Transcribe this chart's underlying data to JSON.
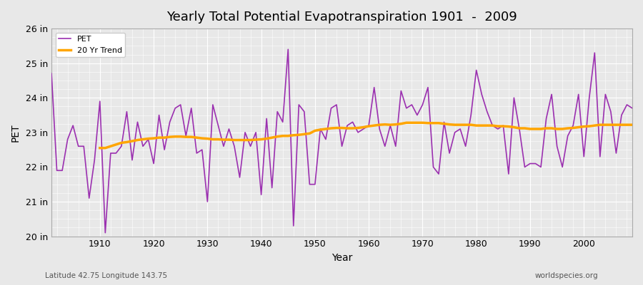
{
  "title": "Yearly Total Potential Evapotranspiration 1901  -  2009",
  "xlabel": "Year",
  "ylabel": "PET",
  "lat_lon_label": "Latitude 42.75 Longitude 143.75",
  "watermark": "worldspecies.org",
  "ylim": [
    20,
    26
  ],
  "xlim": [
    1901,
    2009
  ],
  "ytick_labels": [
    "20 in",
    "21 in",
    "22 in",
    "23 in",
    "24 in",
    "25 in",
    "26 in"
  ],
  "ytick_values": [
    20,
    21,
    22,
    23,
    24,
    25,
    26
  ],
  "xtick_values": [
    1910,
    1920,
    1930,
    1940,
    1950,
    1960,
    1970,
    1980,
    1990,
    2000
  ],
  "pet_color": "#9B30B0",
  "trend_color": "#FFA500",
  "bg_color": "#E8E8E8",
  "plot_bg_color": "#E8E8E8",
  "grid_color": "#FFFFFF",
  "years": [
    1901,
    1902,
    1903,
    1904,
    1905,
    1906,
    1907,
    1908,
    1909,
    1910,
    1911,
    1912,
    1913,
    1914,
    1915,
    1916,
    1917,
    1918,
    1919,
    1920,
    1921,
    1922,
    1923,
    1924,
    1925,
    1926,
    1927,
    1928,
    1929,
    1930,
    1931,
    1932,
    1933,
    1934,
    1935,
    1936,
    1937,
    1938,
    1939,
    1940,
    1941,
    1942,
    1943,
    1944,
    1945,
    1946,
    1947,
    1948,
    1949,
    1950,
    1951,
    1952,
    1953,
    1954,
    1955,
    1956,
    1957,
    1958,
    1959,
    1960,
    1961,
    1962,
    1963,
    1964,
    1965,
    1966,
    1967,
    1968,
    1969,
    1970,
    1971,
    1972,
    1973,
    1974,
    1975,
    1976,
    1977,
    1978,
    1979,
    1980,
    1981,
    1982,
    1983,
    1984,
    1985,
    1986,
    1987,
    1988,
    1989,
    1990,
    1991,
    1992,
    1993,
    1994,
    1995,
    1996,
    1997,
    1998,
    1999,
    2000,
    2001,
    2002,
    2003,
    2004,
    2005,
    2006,
    2007,
    2008,
    2009
  ],
  "pet_values": [
    24.7,
    21.9,
    21.9,
    22.8,
    23.2,
    22.6,
    22.6,
    21.1,
    22.2,
    23.9,
    20.1,
    22.4,
    22.4,
    22.6,
    23.6,
    22.2,
    23.3,
    22.6,
    22.8,
    22.1,
    23.5,
    22.5,
    23.3,
    23.7,
    23.8,
    22.9,
    23.7,
    22.4,
    22.5,
    21.0,
    23.8,
    23.2,
    22.6,
    23.1,
    22.6,
    21.7,
    23.0,
    22.6,
    23.0,
    21.2,
    23.4,
    21.4,
    23.6,
    23.3,
    25.4,
    20.3,
    23.8,
    23.6,
    21.5,
    21.5,
    23.1,
    22.8,
    23.7,
    23.8,
    22.6,
    23.2,
    23.3,
    23.0,
    23.1,
    23.2,
    24.3,
    23.1,
    22.6,
    23.2,
    22.6,
    24.2,
    23.7,
    23.8,
    23.5,
    23.8,
    24.3,
    22.0,
    21.8,
    23.3,
    22.4,
    23.0,
    23.1,
    22.6,
    23.5,
    24.8,
    24.1,
    23.6,
    23.2,
    23.1,
    23.2,
    21.8,
    24.0,
    23.1,
    22.0,
    22.1,
    22.1,
    22.0,
    23.4,
    24.1,
    22.6,
    22.0,
    22.9,
    23.2,
    24.1,
    22.3,
    24.0,
    25.3,
    22.3,
    24.1,
    23.6,
    22.4,
    23.5,
    23.8,
    23.7
  ],
  "trend_years": [
    1910,
    1911,
    1912,
    1913,
    1914,
    1915,
    1916,
    1917,
    1918,
    1919,
    1920,
    1921,
    1922,
    1923,
    1924,
    1925,
    1926,
    1927,
    1928,
    1929,
    1930,
    1931,
    1932,
    1933,
    1934,
    1935,
    1936,
    1937,
    1938,
    1939,
    1940,
    1941,
    1942,
    1943,
    1944,
    1945,
    1946,
    1947,
    1948,
    1949,
    1950,
    1951,
    1952,
    1953,
    1954,
    1955,
    1956,
    1957,
    1958,
    1959,
    1960,
    1961,
    1962,
    1963,
    1964,
    1965,
    1966,
    1967,
    1968,
    1969,
    1970,
    1971,
    1972,
    1973,
    1974,
    1975,
    1976,
    1977,
    1978,
    1979,
    1980,
    1981,
    1982,
    1983,
    1984,
    1985,
    1986,
    1987,
    1988,
    1989,
    1990,
    1991,
    1992,
    1993,
    1994,
    1995,
    1996,
    1997,
    1998,
    1999,
    2000,
    2001,
    2002,
    2003,
    2004,
    2005,
    2006,
    2007,
    2008,
    2009
  ],
  "trend_values": [
    22.55,
    22.55,
    22.6,
    22.65,
    22.7,
    22.72,
    22.75,
    22.78,
    22.8,
    22.82,
    22.83,
    22.85,
    22.85,
    22.87,
    22.88,
    22.88,
    22.87,
    22.87,
    22.85,
    22.83,
    22.82,
    22.8,
    22.8,
    22.79,
    22.79,
    22.78,
    22.78,
    22.78,
    22.78,
    22.79,
    22.8,
    22.82,
    22.85,
    22.88,
    22.9,
    22.9,
    22.92,
    22.93,
    22.95,
    22.97,
    23.05,
    23.08,
    23.1,
    23.12,
    23.13,
    23.13,
    23.12,
    23.12,
    23.13,
    23.15,
    23.18,
    23.2,
    23.22,
    23.23,
    23.22,
    23.23,
    23.25,
    23.28,
    23.28,
    23.28,
    23.28,
    23.27,
    23.27,
    23.27,
    23.25,
    23.23,
    23.22,
    23.22,
    23.22,
    23.22,
    23.2,
    23.2,
    23.2,
    23.2,
    23.18,
    23.18,
    23.17,
    23.15,
    23.12,
    23.12,
    23.1,
    23.1,
    23.1,
    23.12,
    23.12,
    23.1,
    23.1,
    23.12,
    23.13,
    23.15,
    23.17,
    23.18,
    23.2,
    23.22,
    23.22,
    23.22,
    23.22,
    23.22,
    23.22,
    23.22
  ]
}
